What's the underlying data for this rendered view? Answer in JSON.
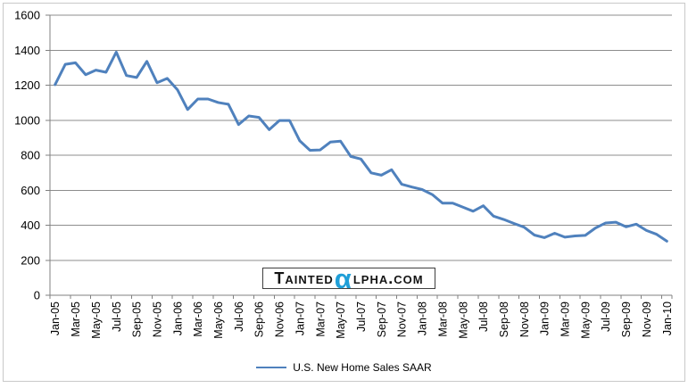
{
  "watermark": {
    "text_before": "Tainted",
    "alpha": "α",
    "text_after": "lpha.com",
    "alpha_color": "#1f9fd8",
    "text_color": "#141414"
  },
  "chart_data": {
    "type": "line",
    "title": "",
    "xlabel": "",
    "ylabel": "",
    "x": [
      "Jan-05",
      "Feb-05",
      "Mar-05",
      "Apr-05",
      "May-05",
      "Jun-05",
      "Jul-05",
      "Aug-05",
      "Sep-05",
      "Oct-05",
      "Nov-05",
      "Dec-05",
      "Jan-06",
      "Feb-06",
      "Mar-06",
      "Apr-06",
      "May-06",
      "Jun-06",
      "Jul-06",
      "Aug-06",
      "Sep-06",
      "Oct-06",
      "Nov-06",
      "Dec-06",
      "Jan-07",
      "Feb-07",
      "Mar-07",
      "Apr-07",
      "May-07",
      "Jun-07",
      "Jul-07",
      "Aug-07",
      "Sep-07",
      "Oct-07",
      "Nov-07",
      "Dec-07",
      "Jan-08",
      "Feb-08",
      "Mar-08",
      "Apr-08",
      "May-08",
      "Jun-08",
      "Jul-08",
      "Aug-08",
      "Sep-08",
      "Oct-08",
      "Nov-08",
      "Dec-08",
      "Jan-09",
      "Feb-09",
      "Mar-09",
      "Apr-09",
      "May-09",
      "Jun-09",
      "Jul-09",
      "Aug-09",
      "Sep-09",
      "Oct-09",
      "Nov-09",
      "Dec-09",
      "Jan-10"
    ],
    "series": [
      {
        "name": "U.S. New Home Sales SAAR",
        "color": "#4F81BD",
        "values": [
          1203,
          1319,
          1328,
          1260,
          1286,
          1274,
          1389,
          1255,
          1244,
          1336,
          1214,
          1239,
          1174,
          1061,
          1121,
          1121,
          1101,
          1091,
          975,
          1024,
          1016,
          946,
          998,
          998,
          882,
          828,
          830,
          875,
          880,
          793,
          778,
          699,
          686,
          717,
          634,
          618,
          604,
          575,
          526,
          526,
          503,
          480,
          511,
          452,
          433,
          410,
          389,
          344,
          329,
          354,
          332,
          339,
          342,
          384,
          413,
          417,
          391,
          406,
          370,
          348,
          309
        ]
      }
    ],
    "ylim": [
      0,
      1600
    ],
    "y_tick_step": 200,
    "y_tick_labels": [
      "0",
      "200",
      "400",
      "600",
      "800",
      "1000",
      "1200",
      "1400",
      "1600"
    ],
    "x_tick_interval": 2,
    "x_tick_labels": [
      "Jan-05",
      "Mar-05",
      "May-05",
      "Jul-05",
      "Sep-05",
      "Nov-05",
      "Jan-06",
      "Mar-06",
      "May-06",
      "Jul-06",
      "Sep-06",
      "Nov-06",
      "Jan-07",
      "Mar-07",
      "May-07",
      "Jul-07",
      "Sep-07",
      "Nov-07",
      "Jan-08",
      "Mar-08",
      "May-08",
      "Jul-08",
      "Sep-08",
      "Nov-08",
      "Jan-09",
      "Mar-09",
      "May-09",
      "Jul-09",
      "Sep-09",
      "Nov-09",
      "Jan-10"
    ],
    "grid": true,
    "gridline_color": "#8c8c8c",
    "axis_color": "#808080",
    "label_color": "#000000",
    "legend_position": "bottom"
  }
}
